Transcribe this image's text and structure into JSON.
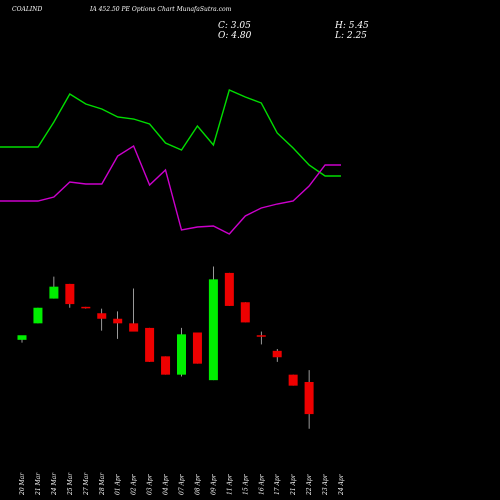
{
  "header": {
    "symbol": "COALIND",
    "subtitle": "IA 452.50  PE Options  Chart MunafaSutra.com",
    "open_label": "O: 4.80",
    "high_label": "H: 5.45",
    "close_label": "C: 3.05",
    "low_label": "L: 2.25"
  },
  "colors": {
    "background": "#000000",
    "up": "#00ee00",
    "down": "#ee0000",
    "line_green": "#00dd00",
    "line_magenta": "#cc00cc",
    "wick_up": "#ffffff"
  },
  "chart_data": {
    "type": "candlestick",
    "dates": [
      "20 Mar",
      "21 Mar",
      "24 Mar",
      "25 Mar",
      "27 Mar",
      "28 Mar",
      "01 Apr",
      "02 Apr",
      "03 Apr",
      "04 Apr",
      "07 Apr",
      "08 Apr",
      "09 Apr",
      "11 Apr",
      "15 Apr",
      "16 Apr",
      "17 Apr",
      "21 Apr",
      "22 Apr",
      "23 Apr",
      "24 Apr"
    ],
    "candles": [
      {
        "o": 7.1,
        "h": 7.25,
        "l": 6.95,
        "c": 7.35
      },
      {
        "o": 8.0,
        "h": 8.85,
        "l": 8.0,
        "c": 8.85
      },
      {
        "o": 9.35,
        "h": 10.55,
        "l": 9.35,
        "c": 10.0
      },
      {
        "o": 10.15,
        "h": 10.15,
        "l": 8.85,
        "c": 9.05
      },
      {
        "o": 8.9,
        "h": 8.9,
        "l": 8.8,
        "c": 8.85
      },
      {
        "o": 8.55,
        "h": 8.8,
        "l": 7.6,
        "c": 8.25
      },
      {
        "o": 8.25,
        "h": 8.65,
        "l": 7.15,
        "c": 8.0
      },
      {
        "o": 8.0,
        "h": 9.9,
        "l": 7.6,
        "c": 7.55
      },
      {
        "o": 7.75,
        "h": 7.75,
        "l": 5.9,
        "c": 5.9
      },
      {
        "o": 6.2,
        "h": 6.2,
        "l": 5.2,
        "c": 5.2
      },
      {
        "o": 5.2,
        "h": 7.75,
        "l": 5.1,
        "c": 7.4
      },
      {
        "o": 7.5,
        "h": 7.5,
        "l": 5.8,
        "c": 5.8
      },
      {
        "o": 4.9,
        "h": 11.1,
        "l": 4.9,
        "c": 10.4
      },
      {
        "o": 10.75,
        "h": 10.75,
        "l": 8.95,
        "c": 8.95
      },
      {
        "o": 9.15,
        "h": 9.15,
        "l": 8.05,
        "c": 8.05
      },
      {
        "o": 7.35,
        "h": 7.55,
        "l": 6.85,
        "c": 7.3
      },
      {
        "o": 6.5,
        "h": 6.6,
        "l": 5.9,
        "c": 6.15
      },
      {
        "o": 5.2,
        "h": 5.2,
        "l": 4.6,
        "c": 4.6
      },
      {
        "o": 4.8,
        "h": 5.45,
        "l": 2.25,
        "c": 3.05
      },
      {
        "o": 0,
        "h": 0,
        "l": 0,
        "c": 0
      },
      {
        "o": 0,
        "h": 0,
        "l": 0,
        "c": 0
      }
    ],
    "line_green": [
      147,
      147,
      122,
      94,
      104,
      109,
      117,
      119,
      124,
      143,
      150,
      126,
      145,
      90,
      97,
      103,
      133,
      148,
      165,
      176,
      176
    ],
    "line_magenta": [
      201,
      201,
      197,
      182,
      184,
      184,
      156,
      146,
      185,
      170,
      230,
      227,
      226,
      234,
      216,
      208,
      204,
      201,
      186,
      165,
      165
    ]
  }
}
